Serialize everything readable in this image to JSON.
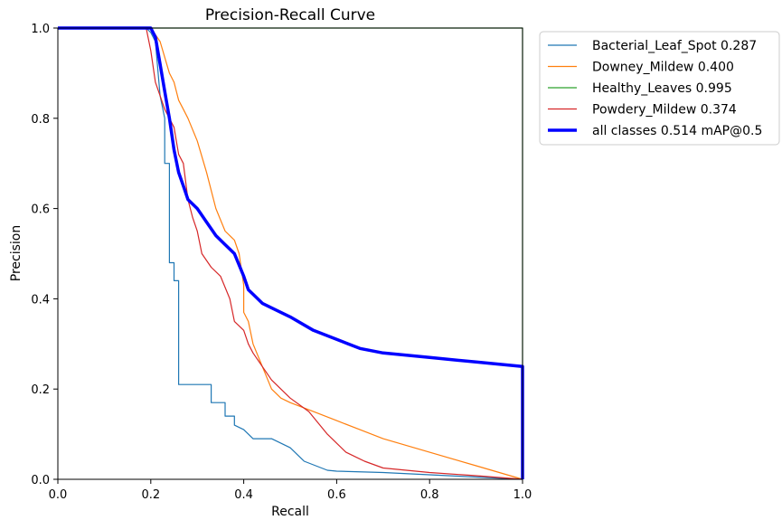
{
  "chart_data": {
    "type": "line",
    "title": "Precision-Recall Curve",
    "xlabel": "Recall",
    "ylabel": "Precision",
    "xlim": [
      0.0,
      1.0
    ],
    "ylim": [
      0.0,
      1.0
    ],
    "xticks": [
      "0.0",
      "0.2",
      "0.4",
      "0.6",
      "0.8",
      "1.0"
    ],
    "yticks": [
      "0.0",
      "0.2",
      "0.4",
      "0.6",
      "0.8",
      "1.0"
    ],
    "grid": false,
    "legend_position": "outside-top-right",
    "series": [
      {
        "name": "Bacterial_Leaf_Spot 0.287",
        "color": "#1f77b4",
        "line_width": "thin",
        "x": [
          0.0,
          0.19,
          0.2,
          0.21,
          0.22,
          0.23,
          0.23,
          0.24,
          0.24,
          0.25,
          0.25,
          0.26,
          0.26,
          0.27,
          0.27,
          0.33,
          0.33,
          0.36,
          0.36,
          0.38,
          0.38,
          0.4,
          0.42,
          0.46,
          0.5,
          0.53,
          0.58,
          0.6,
          0.7,
          0.8,
          0.9,
          1.0
        ],
        "y": [
          1.0,
          1.0,
          0.99,
          0.97,
          0.85,
          0.8,
          0.7,
          0.7,
          0.48,
          0.48,
          0.44,
          0.44,
          0.21,
          0.21,
          0.21,
          0.21,
          0.17,
          0.17,
          0.14,
          0.14,
          0.12,
          0.11,
          0.09,
          0.09,
          0.07,
          0.04,
          0.02,
          0.018,
          0.015,
          0.01,
          0.005,
          0.0
        ]
      },
      {
        "name": "Downey_Mildew 0.400",
        "color": "#ff7f0e",
        "line_width": "thin",
        "x": [
          0.0,
          0.2,
          0.22,
          0.24,
          0.25,
          0.26,
          0.27,
          0.28,
          0.3,
          0.32,
          0.34,
          0.36,
          0.38,
          0.39,
          0.4,
          0.4,
          0.41,
          0.42,
          0.44,
          0.46,
          0.48,
          0.5,
          0.55,
          0.6,
          0.65,
          0.7,
          0.8,
          0.9,
          0.95,
          1.0
        ],
        "y": [
          1.0,
          1.0,
          0.97,
          0.9,
          0.88,
          0.84,
          0.82,
          0.8,
          0.75,
          0.68,
          0.6,
          0.55,
          0.53,
          0.5,
          0.43,
          0.37,
          0.35,
          0.3,
          0.25,
          0.2,
          0.18,
          0.17,
          0.15,
          0.13,
          0.11,
          0.09,
          0.06,
          0.03,
          0.015,
          0.0
        ]
      },
      {
        "name": "Healthy_Leaves 0.995",
        "color": "#2ca02c",
        "line_width": "thin",
        "x": [
          0.0,
          0.995,
          1.0,
          1.0
        ],
        "y": [
          1.0,
          1.0,
          1.0,
          0.0
        ]
      },
      {
        "name": "Powdery_Mildew 0.374",
        "color": "#d62728",
        "line_width": "thin",
        "x": [
          0.0,
          0.19,
          0.2,
          0.21,
          0.22,
          0.23,
          0.24,
          0.25,
          0.26,
          0.27,
          0.28,
          0.29,
          0.3,
          0.31,
          0.33,
          0.35,
          0.37,
          0.38,
          0.4,
          0.41,
          0.42,
          0.44,
          0.46,
          0.5,
          0.54,
          0.58,
          0.62,
          0.66,
          0.7,
          0.8,
          0.9,
          1.0
        ],
        "y": [
          1.0,
          1.0,
          0.95,
          0.88,
          0.85,
          0.82,
          0.8,
          0.78,
          0.72,
          0.7,
          0.62,
          0.58,
          0.55,
          0.5,
          0.47,
          0.45,
          0.4,
          0.35,
          0.33,
          0.3,
          0.28,
          0.25,
          0.22,
          0.18,
          0.15,
          0.1,
          0.06,
          0.04,
          0.025,
          0.015,
          0.008,
          0.0
        ]
      },
      {
        "name": "all classes 0.514 mAP@0.5",
        "color": "#0000ff",
        "line_width": "thick",
        "x": [
          0.0,
          0.2,
          0.21,
          0.22,
          0.23,
          0.24,
          0.25,
          0.26,
          0.27,
          0.28,
          0.3,
          0.32,
          0.34,
          0.36,
          0.38,
          0.4,
          0.41,
          0.42,
          0.44,
          0.46,
          0.5,
          0.55,
          0.6,
          0.65,
          0.7,
          0.8,
          0.9,
          1.0,
          1.0
        ],
        "y": [
          1.0,
          1.0,
          0.98,
          0.92,
          0.86,
          0.8,
          0.73,
          0.68,
          0.65,
          0.62,
          0.6,
          0.57,
          0.54,
          0.52,
          0.5,
          0.45,
          0.42,
          0.41,
          0.39,
          0.38,
          0.36,
          0.33,
          0.31,
          0.29,
          0.28,
          0.27,
          0.26,
          0.25,
          0.0
        ]
      }
    ]
  }
}
